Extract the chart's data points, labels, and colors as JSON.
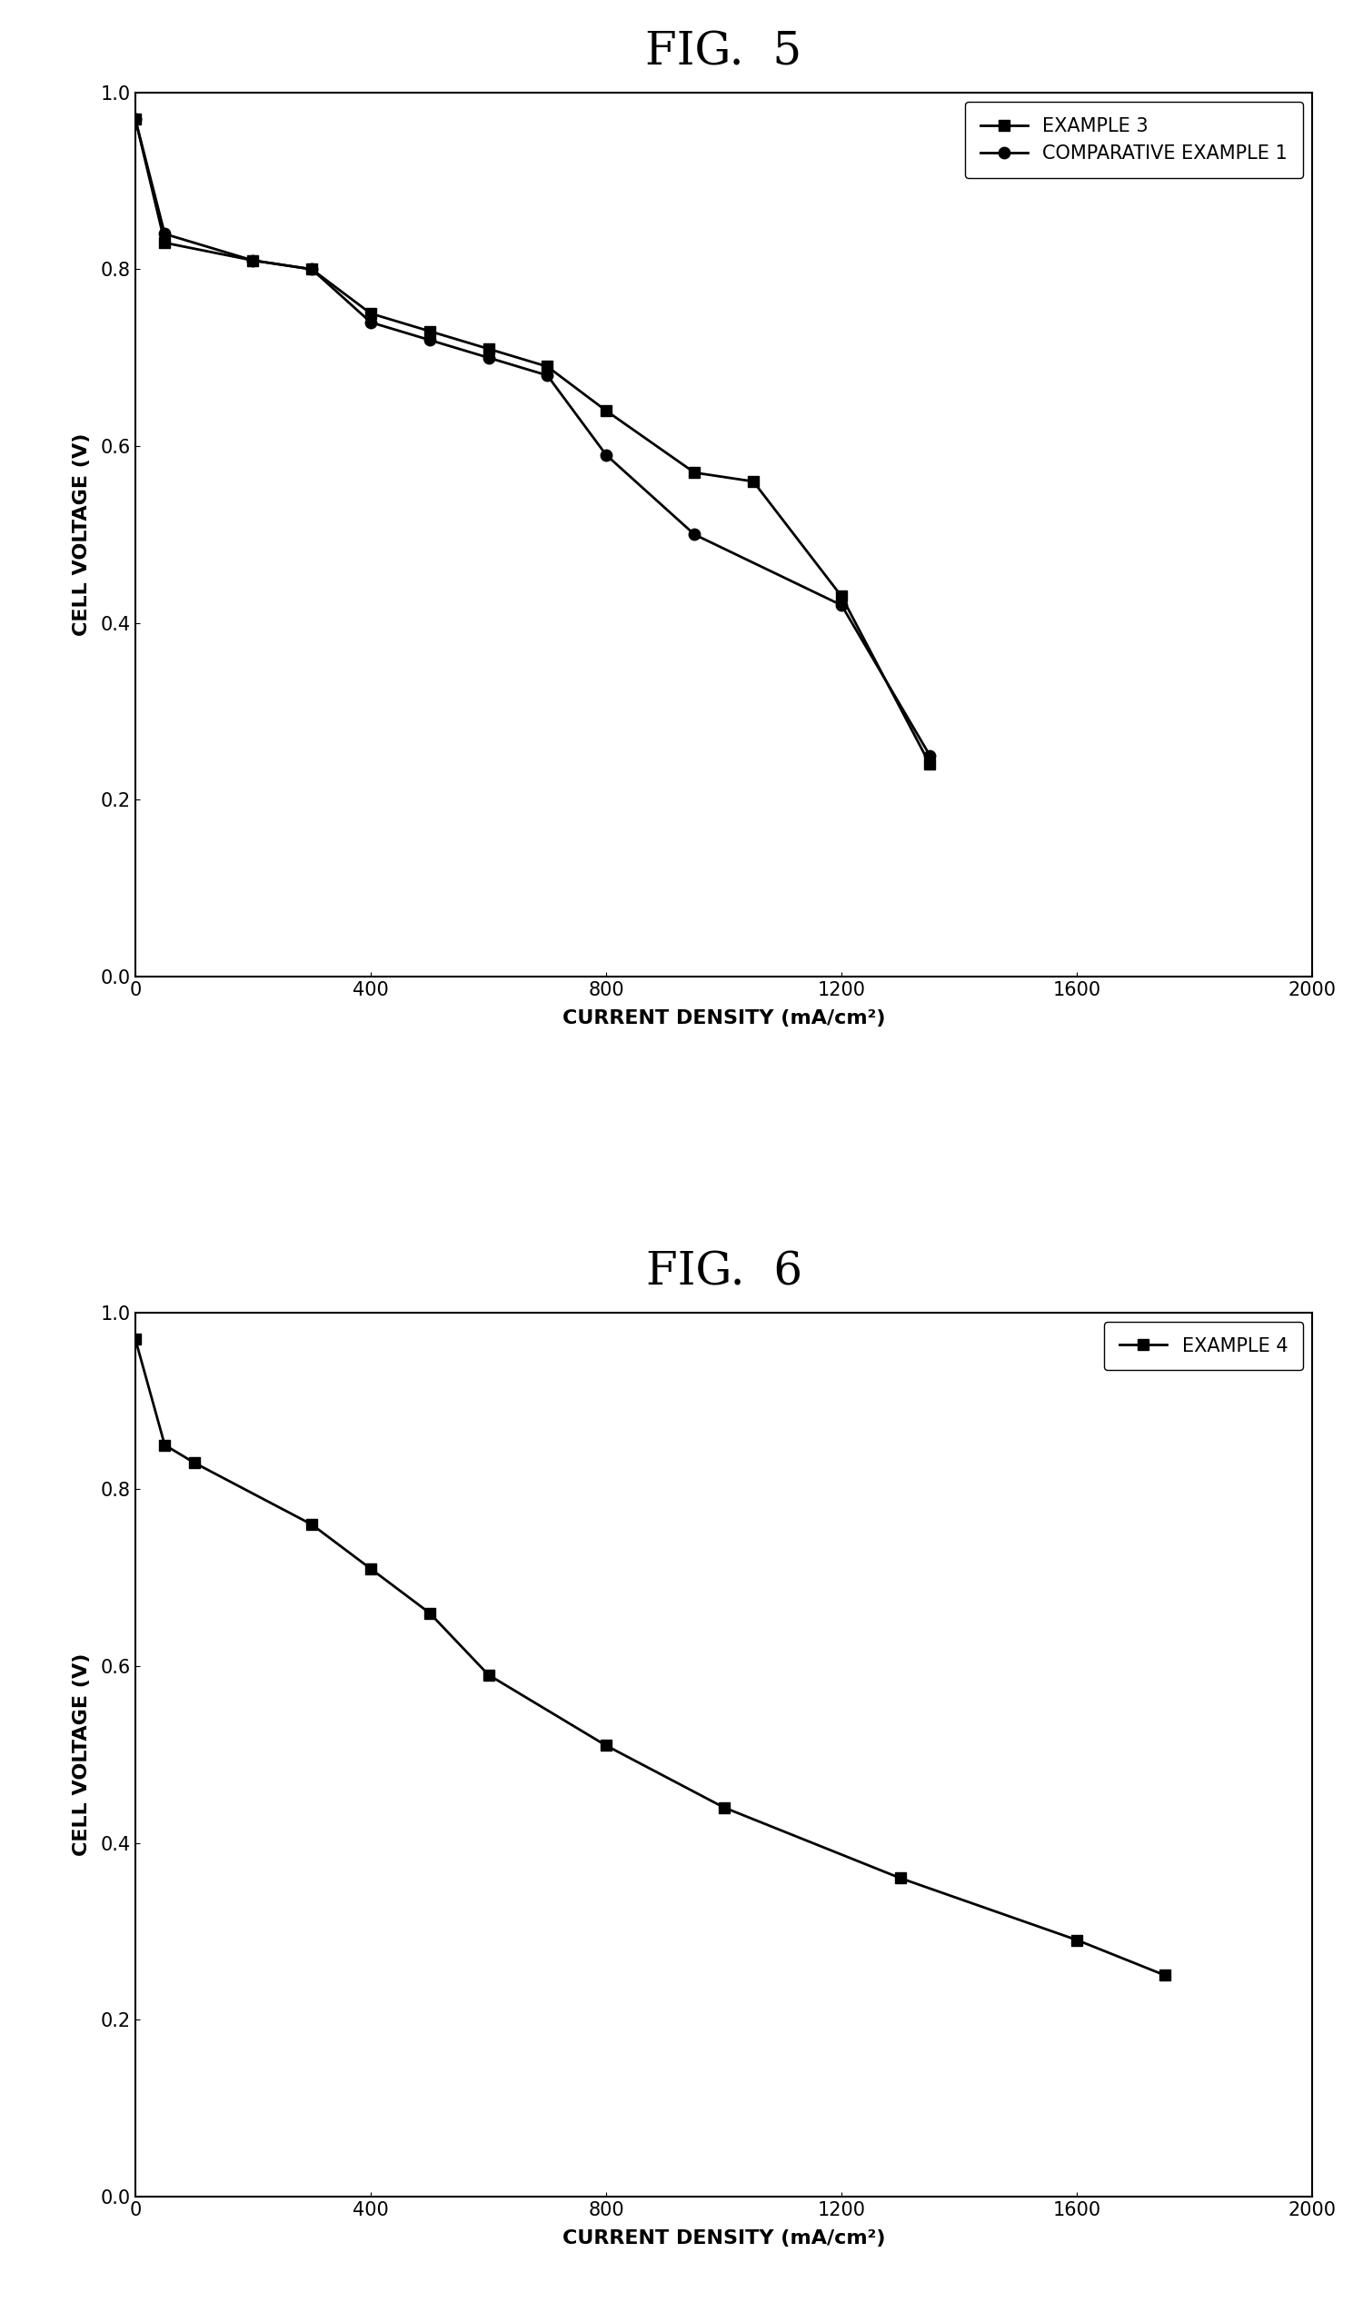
{
  "fig5_title": "FIG.  5",
  "fig6_title": "FIG.  6",
  "example3_x": [
    0,
    50,
    200,
    300,
    400,
    500,
    600,
    700,
    800,
    950,
    1050,
    1200,
    1350
  ],
  "example3_y": [
    0.97,
    0.83,
    0.81,
    0.8,
    0.75,
    0.73,
    0.71,
    0.69,
    0.64,
    0.57,
    0.56,
    0.43,
    0.24
  ],
  "comp_example1_x": [
    0,
    50,
    200,
    300,
    400,
    500,
    600,
    700,
    800,
    950,
    1200,
    1350
  ],
  "comp_example1_y": [
    0.97,
    0.84,
    0.81,
    0.8,
    0.74,
    0.72,
    0.7,
    0.68,
    0.59,
    0.5,
    0.42,
    0.25
  ],
  "example4_x": [
    0,
    50,
    100,
    300,
    400,
    500,
    600,
    800,
    1000,
    1300,
    1600,
    1750
  ],
  "example4_y": [
    0.97,
    0.85,
    0.83,
    0.76,
    0.71,
    0.66,
    0.59,
    0.51,
    0.44,
    0.36,
    0.29,
    0.25
  ],
  "line_color": "#000000",
  "bg_color": "#ffffff",
  "xlabel": "CURRENT DENSITY (mA/cm²)",
  "ylabel": "CELL VOLTAGE (V)",
  "xlim5": [
    0,
    2000
  ],
  "ylim5": [
    0.0,
    1.0
  ],
  "xlim6": [
    0,
    2000
  ],
  "ylim6": [
    0.0,
    1.0
  ],
  "xticks5": [
    0,
    400,
    800,
    1200,
    1600,
    2000
  ],
  "xticks6": [
    0,
    400,
    800,
    1200,
    1600,
    2000
  ],
  "yticks": [
    0.0,
    0.2,
    0.4,
    0.6,
    0.8,
    1.0
  ],
  "legend3_label": "EXAMPLE 3",
  "legend_comp_label": "COMPARATIVE EXAMPLE 1",
  "legend4_label": "EXAMPLE 4",
  "title_fontsize": 36,
  "label_fontsize": 16,
  "tick_fontsize": 15,
  "legend_fontsize": 15,
  "marker_size": 9,
  "line_width": 2.0
}
